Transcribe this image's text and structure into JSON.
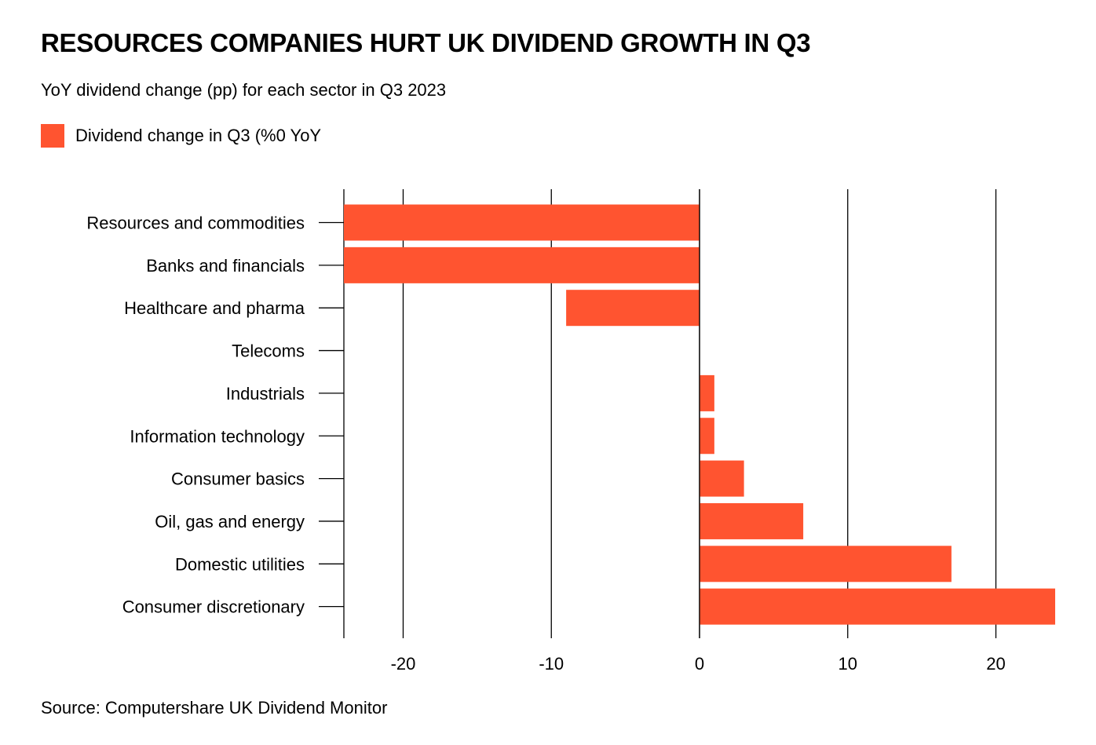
{
  "title": "RESOURCES COMPANIES HURT UK DIVIDEND GROWTH IN Q3",
  "subtitle": "YoY dividend change (pp) for each sector in Q3 2023",
  "source": "Source: Computershare UK Dividend Monitor",
  "colors": {
    "bar": "#ff5430",
    "grid": "#000000",
    "text": "#000000"
  },
  "chart_data": {
    "type": "bar",
    "orientation": "horizontal",
    "categories": [
      "Resources and commodities",
      "Banks and financials",
      "Healthcare and pharma",
      "Telecoms",
      "Industrials",
      "Information technology",
      "Consumer basics",
      "Oil, gas and energy",
      "Domestic utilities",
      "Consumer discretionary"
    ],
    "series": [
      {
        "name": "Dividend change in Q3 (%0 YoY",
        "values": [
          -24,
          -24,
          -9,
          0,
          1,
          1,
          3,
          7,
          17,
          24
        ]
      }
    ],
    "xlim": [
      -24,
      24
    ],
    "xticks": [
      -20,
      -10,
      0,
      10,
      20
    ],
    "xtick_labels": [
      "-20",
      "-10",
      "0",
      "10",
      "20"
    ],
    "grid": true,
    "legend_position": "top-left"
  }
}
